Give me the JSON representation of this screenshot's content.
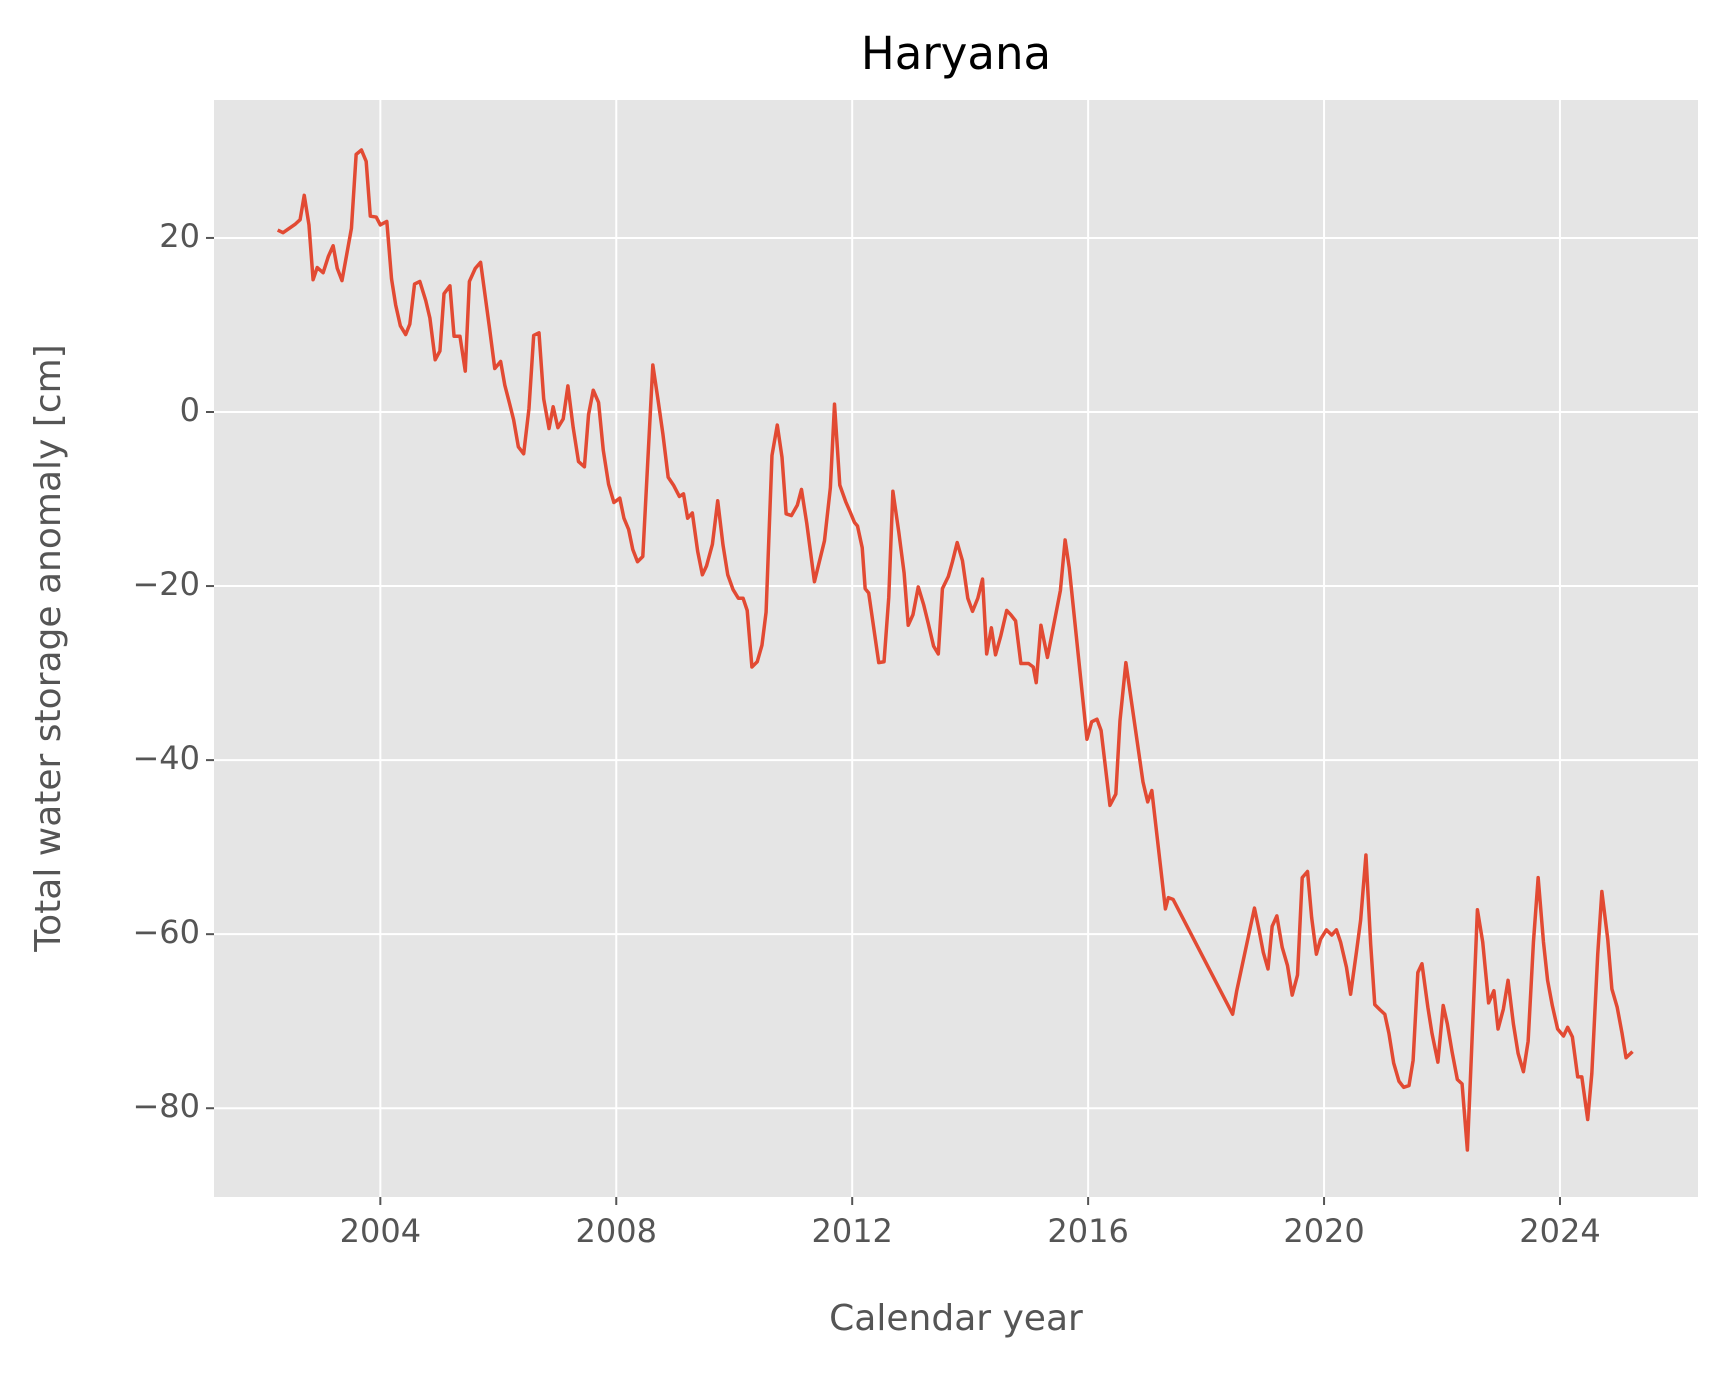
{
  "chart_data": {
    "type": "line",
    "title": "Haryana",
    "x_label": "Calendar year",
    "y_label": "Total water storage anomaly [cm]",
    "color": "#e24a33",
    "grid": true,
    "xlim": [
      2001.18,
      2026.34
    ],
    "ylim": [
      -90.2,
      35.85
    ],
    "xticks": [
      2004,
      2008,
      2012,
      2016,
      2020,
      2024
    ],
    "yticks": [
      {
        "value": -80,
        "label": "−80"
      },
      {
        "value": -60,
        "label": "−60"
      },
      {
        "value": -40,
        "label": "−40"
      },
      {
        "value": -20,
        "label": "−20"
      },
      0,
      20
    ],
    "x": [
      2002.26,
      2002.35,
      2002.56,
      2002.64,
      2002.71,
      2002.79,
      2002.86,
      2002.93,
      2003.03,
      2003.12,
      2003.2,
      2003.27,
      2003.35,
      2003.51,
      2003.59,
      2003.68,
      2003.76,
      2003.83,
      2003.93,
      2004.0,
      2004.11,
      2004.19,
      2004.26,
      2004.34,
      2004.43,
      2004.5,
      2004.58,
      2004.67,
      2004.77,
      2004.84,
      2004.93,
      2005.01,
      2005.08,
      2005.18,
      2005.25,
      2005.35,
      2005.44,
      2005.51,
      2005.61,
      2005.7,
      2005.85,
      2005.94,
      2006.04,
      2006.11,
      2006.19,
      2006.26,
      2006.34,
      2006.43,
      2006.52,
      2006.6,
      2006.69,
      2006.77,
      2006.86,
      2006.93,
      2007.01,
      2007.1,
      2007.18,
      2007.27,
      2007.36,
      2007.46,
      2007.53,
      2007.61,
      2007.7,
      2007.78,
      2007.87,
      2007.96,
      2008.06,
      2008.13,
      2008.21,
      2008.28,
      2008.36,
      2008.45,
      2008.62,
      2008.71,
      2008.79,
      2008.88,
      2008.97,
      2009.07,
      2009.14,
      2009.21,
      2009.29,
      2009.38,
      2009.46,
      2009.53,
      2009.63,
      2009.72,
      2009.81,
      2009.89,
      2009.98,
      2010.07,
      2010.15,
      2010.22,
      2010.3,
      2010.39,
      2010.47,
      2010.54,
      2010.64,
      2010.73,
      2010.81,
      2010.88,
      2010.97,
      2011.07,
      2011.14,
      2011.23,
      2011.36,
      2011.53,
      2011.63,
      2011.7,
      2011.79,
      2011.89,
      2011.96,
      2012.04,
      2012.09,
      2012.17,
      2012.22,
      2012.28,
      2012.45,
      2012.54,
      2012.62,
      2012.69,
      2012.79,
      2012.88,
      2012.95,
      2013.03,
      2013.12,
      2013.21,
      2013.29,
      2013.38,
      2013.46,
      2013.53,
      2013.63,
      2013.7,
      2013.78,
      2013.87,
      2013.96,
      2014.04,
      2014.13,
      2014.21,
      2014.28,
      2014.36,
      2014.43,
      2014.52,
      2014.62,
      2014.69,
      2014.77,
      2014.86,
      2014.99,
      2015.07,
      2015.12,
      2015.2,
      2015.31,
      2015.53,
      2015.61,
      2015.68,
      2015.98,
      2016.06,
      2016.15,
      2016.22,
      2016.37,
      2016.47,
      2016.54,
      2016.64,
      2016.93,
      2017.01,
      2017.08,
      2017.31,
      2017.36,
      2017.44,
      2018.45,
      2018.52,
      2018.82,
      2018.9,
      2018.97,
      2019.05,
      2019.12,
      2019.2,
      2019.29,
      2019.38,
      2019.46,
      2019.55,
      2019.63,
      2019.72,
      2019.79,
      2019.87,
      2019.94,
      2020.04,
      2020.13,
      2020.21,
      2020.28,
      2020.38,
      2020.45,
      2020.55,
      2020.62,
      2020.71,
      2020.79,
      2020.86,
      2020.95,
      2021.03,
      2021.1,
      2021.18,
      2021.27,
      2021.35,
      2021.44,
      2021.51,
      2021.59,
      2021.66,
      2021.76,
      2021.83,
      2021.93,
      2022.02,
      2022.09,
      2022.17,
      2022.26,
      2022.34,
      2022.43,
      2022.5,
      2022.6,
      2022.69,
      2022.79,
      2022.88,
      2022.95,
      2023.04,
      2023.12,
      2023.21,
      2023.29,
      2023.38,
      2023.46,
      2023.55,
      2023.63,
      2023.72,
      2023.79,
      2023.87,
      2023.96,
      2024.06,
      2024.13,
      2024.21,
      2024.3,
      2024.37,
      2024.47,
      2024.54,
      2024.64,
      2024.71,
      2024.81,
      2024.88,
      2024.97,
      2025.05,
      2025.12,
      2025.23
    ],
    "values": [
      20.9,
      20.6,
      21.6,
      22.1,
      24.9,
      21.5,
      15.2,
      16.6,
      16.0,
      17.9,
      19.1,
      16.5,
      15.1,
      21.1,
      29.6,
      30.1,
      28.8,
      22.5,
      22.4,
      21.5,
      21.9,
      15.3,
      12.3,
      9.9,
      8.9,
      10.1,
      14.7,
      15.0,
      12.8,
      10.8,
      6.0,
      7.0,
      13.6,
      14.5,
      8.7,
      8.7,
      4.7,
      15.0,
      16.5,
      17.2,
      9.7,
      5.0,
      5.8,
      3.1,
      1.0,
      -0.9,
      -4.0,
      -4.8,
      0.4,
      8.8,
      9.1,
      1.5,
      -1.9,
      0.6,
      -1.8,
      -0.8,
      3.0,
      -1.8,
      -5.7,
      -6.3,
      -0.3,
      2.5,
      1.1,
      -4.4,
      -8.3,
      -10.4,
      -9.9,
      -12.2,
      -13.5,
      -15.8,
      -17.2,
      -16.6,
      5.4,
      1.3,
      -2.5,
      -7.5,
      -8.4,
      -9.7,
      -9.4,
      -12.2,
      -11.6,
      -16.0,
      -18.7,
      -17.7,
      -15.2,
      -10.2,
      -15.3,
      -18.7,
      -20.4,
      -21.4,
      -21.4,
      -22.8,
      -29.3,
      -28.7,
      -26.8,
      -23.0,
      -5.0,
      -1.5,
      -5.2,
      -11.7,
      -11.9,
      -10.7,
      -8.9,
      -12.8,
      -19.5,
      -14.8,
      -8.7,
      0.9,
      -8.4,
      -10.3,
      -11.4,
      -12.7,
      -13.1,
      -15.6,
      -20.3,
      -20.8,
      -28.8,
      -28.7,
      -21.3,
      -9.1,
      -13.8,
      -18.5,
      -24.5,
      -23.3,
      -20.1,
      -22.1,
      -24.3,
      -26.9,
      -27.8,
      -20.3,
      -18.9,
      -17.2,
      -15.0,
      -17.1,
      -21.4,
      -22.9,
      -21.4,
      -19.2,
      -27.8,
      -24.8,
      -27.9,
      -25.7,
      -22.8,
      -23.3,
      -24.0,
      -28.9,
      -28.9,
      -29.3,
      -31.1,
      -24.5,
      -28.2,
      -20.5,
      -14.7,
      -17.9,
      -37.6,
      -35.6,
      -35.3,
      -36.6,
      -45.2,
      -43.9,
      -35.5,
      -28.8,
      -42.5,
      -44.8,
      -43.5,
      -57.1,
      -55.8,
      -56.0,
      -69.2,
      -66.5,
      -57.0,
      -59.6,
      -62.1,
      -64.0,
      -59.1,
      -57.9,
      -61.5,
      -63.6,
      -67.0,
      -64.7,
      -53.5,
      -52.8,
      -58.1,
      -62.3,
      -60.6,
      -59.5,
      -60.1,
      -59.5,
      -60.9,
      -63.8,
      -66.9,
      -62.0,
      -58.4,
      -50.9,
      -61.1,
      -68.1,
      -68.7,
      -69.2,
      -71.4,
      -74.8,
      -76.9,
      -77.6,
      -77.4,
      -74.5,
      -64.4,
      -63.4,
      -68.4,
      -71.4,
      -74.7,
      -68.2,
      -70.3,
      -73.5,
      -76.7,
      -77.2,
      -84.8,
      -73.6,
      -57.2,
      -60.9,
      -67.9,
      -66.5,
      -70.9,
      -68.6,
      -65.3,
      -70.3,
      -73.7,
      -75.8,
      -72.3,
      -60.9,
      -53.5,
      -60.9,
      -65.3,
      -68.2,
      -70.9,
      -71.7,
      -70.7,
      -71.8,
      -76.4,
      -76.4,
      -81.3,
      -76.0,
      -62.3,
      -55.1,
      -60.6,
      -66.3,
      -68.4,
      -71.3,
      -74.2,
      -73.5
    ]
  }
}
